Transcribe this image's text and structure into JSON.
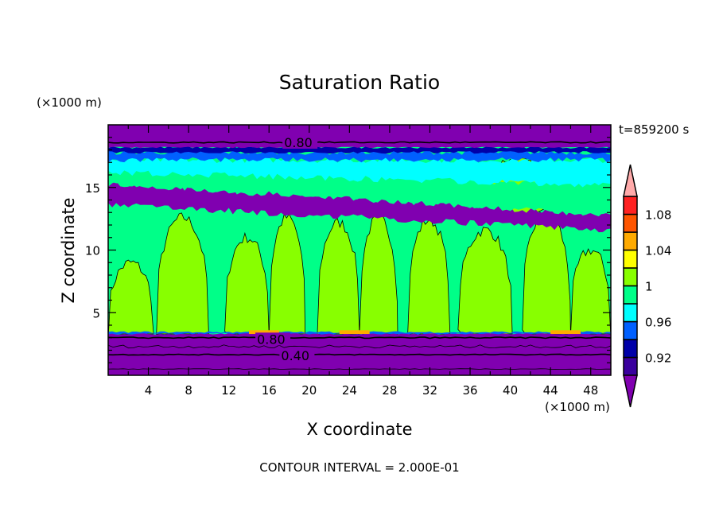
{
  "chart_data": {
    "type": "heatmap",
    "subtype": "filled-contour",
    "title": "Saturation Ratio",
    "xlabel": "X coordinate",
    "ylabel": "Z coordinate",
    "x_unit_label": "(×1000 m)",
    "y_unit_label": "(×1000 m)",
    "xlim": [
      0,
      50
    ],
    "ylim": [
      0,
      20
    ],
    "x_ticks": [
      4,
      8,
      12,
      16,
      20,
      24,
      28,
      32,
      36,
      40,
      44,
      48
    ],
    "y_ticks": [
      5,
      10,
      15
    ],
    "time_label": "t=859200 s",
    "footer": "CONTOUR INTERVAL = 2.000E-01",
    "contour_labels": [
      {
        "text": "0.80",
        "x": 17.5,
        "z": 18.6
      },
      {
        "text": "0.80",
        "x": 14.8,
        "z": 2.9
      },
      {
        "text": "0.40",
        "x": 17.2,
        "z": 1.6
      }
    ],
    "colorbar": {
      "levels": [
        0.9,
        0.92,
        0.94,
        0.96,
        0.98,
        1.0,
        1.02,
        1.04,
        1.06,
        1.08,
        1.1
      ],
      "tick_labels": [
        {
          "value": 0.92,
          "text": "0.92"
        },
        {
          "value": 0.96,
          "text": "0.96"
        },
        {
          "value": 1.0,
          "text": "1"
        },
        {
          "value": 1.04,
          "text": "1.04"
        },
        {
          "value": 1.08,
          "text": "1.08"
        }
      ],
      "colors": [
        "#3a009e",
        "#0000a8",
        "#0060ff",
        "#00ffff",
        "#00ff88",
        "#88ff00",
        "#ffff00",
        "#ffaa00",
        "#ff5500",
        "#ff2222"
      ],
      "under_color": "#8000b0",
      "over_color": "#ffaaaa"
    }
  }
}
